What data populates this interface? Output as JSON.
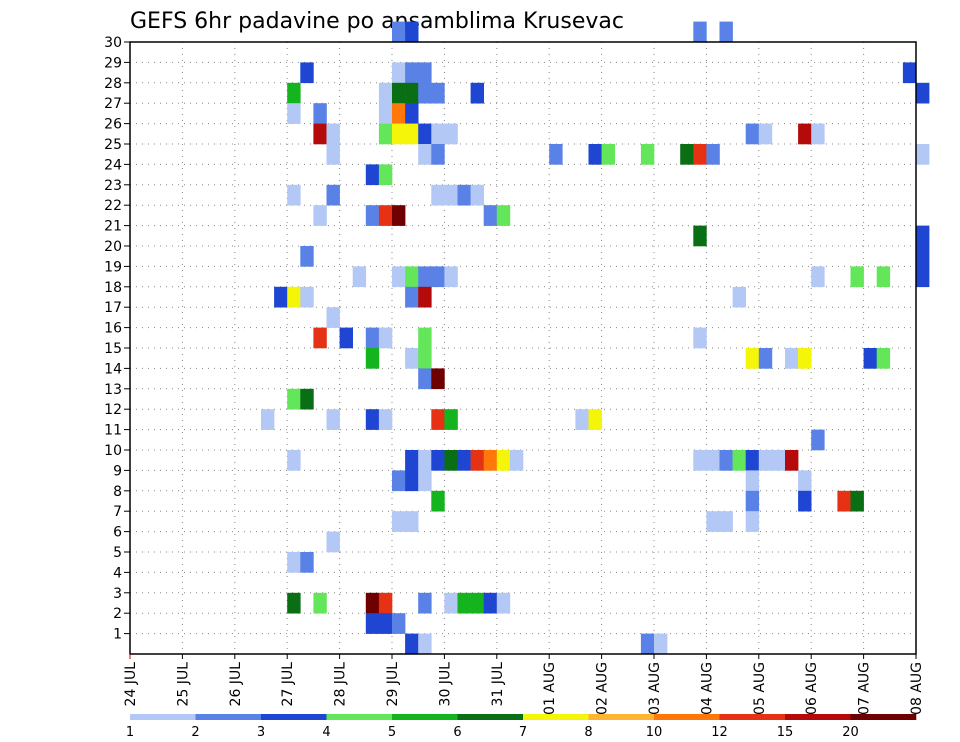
{
  "chart_data": {
    "type": "heatmap",
    "title": "GEFS 6hr padavine po ansamblima Krusevac",
    "x_labels": [
      "24 JUL",
      "25 JUL",
      "26 JUL",
      "27 JUL",
      "28 JUL",
      "29 JUL",
      "30 JUL",
      "31 JUL",
      "01 AUG",
      "02 AUG",
      "03 AUG",
      "04 AUG",
      "05 AUG",
      "06 AUG",
      "07 AUG",
      "08 AUG"
    ],
    "y_labels": [
      "1",
      "2",
      "3",
      "4",
      "5",
      "6",
      "7",
      "8",
      "9",
      "10",
      "11",
      "12",
      "13",
      "14",
      "15",
      "16",
      "17",
      "18",
      "19",
      "20",
      "21",
      "22",
      "23",
      "24",
      "25",
      "26",
      "27",
      "28",
      "29",
      "30"
    ],
    "ylim": [
      0,
      30
    ],
    "x_steps": 60,
    "steps_per_day": 4,
    "grid": true,
    "legend": {
      "placement": "bottom",
      "labels": [
        "1",
        "2",
        "3",
        "4",
        "5",
        "6",
        "7",
        "8",
        "10",
        "12",
        "15",
        "20"
      ],
      "colors": [
        "#b4c8f5",
        "#5a82e6",
        "#1e46d2",
        "#64e65a",
        "#14b41e",
        "#0a6e14",
        "#f5f50a",
        "#ffb432",
        "#ff780a",
        "#e63214",
        "#b40a0a",
        "#6e0000"
      ]
    },
    "points": [
      [
        20,
        30,
        2
      ],
      [
        21,
        30,
        3
      ],
      [
        43,
        30,
        2
      ],
      [
        45,
        30,
        2
      ],
      [
        13,
        28,
        3
      ],
      [
        20,
        28,
        1
      ],
      [
        21,
        28,
        2
      ],
      [
        22,
        28,
        2
      ],
      [
        59,
        28,
        3
      ],
      [
        12,
        27,
        5
      ],
      [
        19,
        27,
        1
      ],
      [
        20,
        27,
        6
      ],
      [
        21,
        27,
        6
      ],
      [
        22,
        27,
        2
      ],
      [
        23,
        27,
        2
      ],
      [
        26,
        27,
        3
      ],
      [
        60,
        27,
        3
      ],
      [
        12,
        26,
        1
      ],
      [
        14,
        26,
        2
      ],
      [
        19,
        26,
        1
      ],
      [
        20,
        26,
        10
      ],
      [
        21,
        26,
        3
      ],
      [
        14,
        25,
        15
      ],
      [
        15,
        25,
        1
      ],
      [
        19,
        25,
        4
      ],
      [
        20,
        25,
        7
      ],
      [
        21,
        25,
        7
      ],
      [
        22,
        25,
        3
      ],
      [
        23,
        25,
        1
      ],
      [
        24,
        25,
        1
      ],
      [
        47,
        25,
        2
      ],
      [
        48,
        25,
        1
      ],
      [
        51,
        25,
        15
      ],
      [
        52,
        25,
        1
      ],
      [
        15,
        24,
        1
      ],
      [
        22,
        24,
        1
      ],
      [
        23,
        24,
        2
      ],
      [
        32,
        24,
        2
      ],
      [
        35,
        24,
        3
      ],
      [
        36,
        24,
        4
      ],
      [
        39,
        24,
        4
      ],
      [
        42,
        24,
        6
      ],
      [
        43,
        24,
        12
      ],
      [
        44,
        24,
        2
      ],
      [
        60,
        24,
        1
      ],
      [
        18,
        23,
        3
      ],
      [
        19,
        23,
        4
      ],
      [
        12,
        22,
        1
      ],
      [
        15,
        22,
        2
      ],
      [
        23,
        22,
        1
      ],
      [
        24,
        22,
        1
      ],
      [
        25,
        22,
        2
      ],
      [
        26,
        22,
        1
      ],
      [
        14,
        21,
        1
      ],
      [
        18,
        21,
        2
      ],
      [
        19,
        21,
        12
      ],
      [
        20,
        21,
        20
      ],
      [
        27,
        21,
        2
      ],
      [
        28,
        21,
        4
      ],
      [
        43,
        20,
        6
      ],
      [
        60,
        20,
        3
      ],
      [
        13,
        19,
        2
      ],
      [
        60,
        19,
        3
      ],
      [
        17,
        18,
        1
      ],
      [
        20,
        18,
        1
      ],
      [
        21,
        18,
        4
      ],
      [
        22,
        18,
        2
      ],
      [
        23,
        18,
        2
      ],
      [
        24,
        18,
        1
      ],
      [
        52,
        18,
        1
      ],
      [
        55,
        18,
        4
      ],
      [
        57,
        18,
        4
      ],
      [
        60,
        18,
        3
      ],
      [
        11,
        17,
        3
      ],
      [
        12,
        17,
        7
      ],
      [
        13,
        17,
        1
      ],
      [
        21,
        17,
        2
      ],
      [
        22,
        17,
        15
      ],
      [
        46,
        17,
        1
      ],
      [
        15,
        16,
        1
      ],
      [
        14,
        15,
        12
      ],
      [
        16,
        15,
        3
      ],
      [
        18,
        15,
        2
      ],
      [
        19,
        15,
        1
      ],
      [
        22,
        15,
        4
      ],
      [
        43,
        15,
        1
      ],
      [
        18,
        14,
        5
      ],
      [
        21,
        14,
        1
      ],
      [
        22,
        14,
        4
      ],
      [
        47,
        14,
        7
      ],
      [
        48,
        14,
        2
      ],
      [
        50,
        14,
        1
      ],
      [
        51,
        14,
        7
      ],
      [
        56,
        14,
        3
      ],
      [
        57,
        14,
        4
      ],
      [
        22,
        13,
        2
      ],
      [
        23,
        13,
        20
      ],
      [
        12,
        12,
        4
      ],
      [
        13,
        12,
        6
      ],
      [
        10,
        11,
        1
      ],
      [
        15,
        11,
        1
      ],
      [
        18,
        11,
        3
      ],
      [
        19,
        11,
        1
      ],
      [
        23,
        11,
        12
      ],
      [
        24,
        11,
        5
      ],
      [
        34,
        11,
        1
      ],
      [
        35,
        11,
        7
      ],
      [
        52,
        10,
        2
      ],
      [
        12,
        9,
        1
      ],
      [
        21,
        9,
        3
      ],
      [
        22,
        9,
        1
      ],
      [
        23,
        9,
        3
      ],
      [
        24,
        9,
        6
      ],
      [
        25,
        9,
        3
      ],
      [
        26,
        9,
        12
      ],
      [
        27,
        9,
        10
      ],
      [
        28,
        9,
        7
      ],
      [
        29,
        9,
        1
      ],
      [
        43,
        9,
        1
      ],
      [
        44,
        9,
        1
      ],
      [
        45,
        9,
        2
      ],
      [
        46,
        9,
        4
      ],
      [
        47,
        9,
        3
      ],
      [
        48,
        9,
        1
      ],
      [
        49,
        9,
        1
      ],
      [
        50,
        9,
        15
      ],
      [
        20,
        8,
        2
      ],
      [
        21,
        8,
        3
      ],
      [
        22,
        8,
        1
      ],
      [
        47,
        8,
        1
      ],
      [
        51,
        8,
        1
      ],
      [
        23,
        7,
        5
      ],
      [
        47,
        7,
        2
      ],
      [
        51,
        7,
        3
      ],
      [
        54,
        7,
        12
      ],
      [
        55,
        7,
        6
      ],
      [
        20,
        6,
        1
      ],
      [
        21,
        6,
        1
      ],
      [
        44,
        6,
        1
      ],
      [
        45,
        6,
        1
      ],
      [
        47,
        6,
        1
      ],
      [
        15,
        5,
        1
      ],
      [
        12,
        4,
        1
      ],
      [
        13,
        4,
        2
      ],
      [
        12,
        2,
        6
      ],
      [
        14,
        2,
        4
      ],
      [
        18,
        2,
        20
      ],
      [
        19,
        2,
        12
      ],
      [
        22,
        2,
        2
      ],
      [
        24,
        2,
        1
      ],
      [
        25,
        2,
        5
      ],
      [
        26,
        2,
        5
      ],
      [
        27,
        2,
        3
      ],
      [
        28,
        2,
        1
      ],
      [
        18,
        1,
        3
      ],
      [
        19,
        1,
        3
      ],
      [
        20,
        1,
        2
      ],
      [
        21,
        0,
        3
      ],
      [
        22,
        0,
        1
      ],
      [
        39,
        0,
        2
      ],
      [
        40,
        0,
        1
      ]
    ]
  }
}
